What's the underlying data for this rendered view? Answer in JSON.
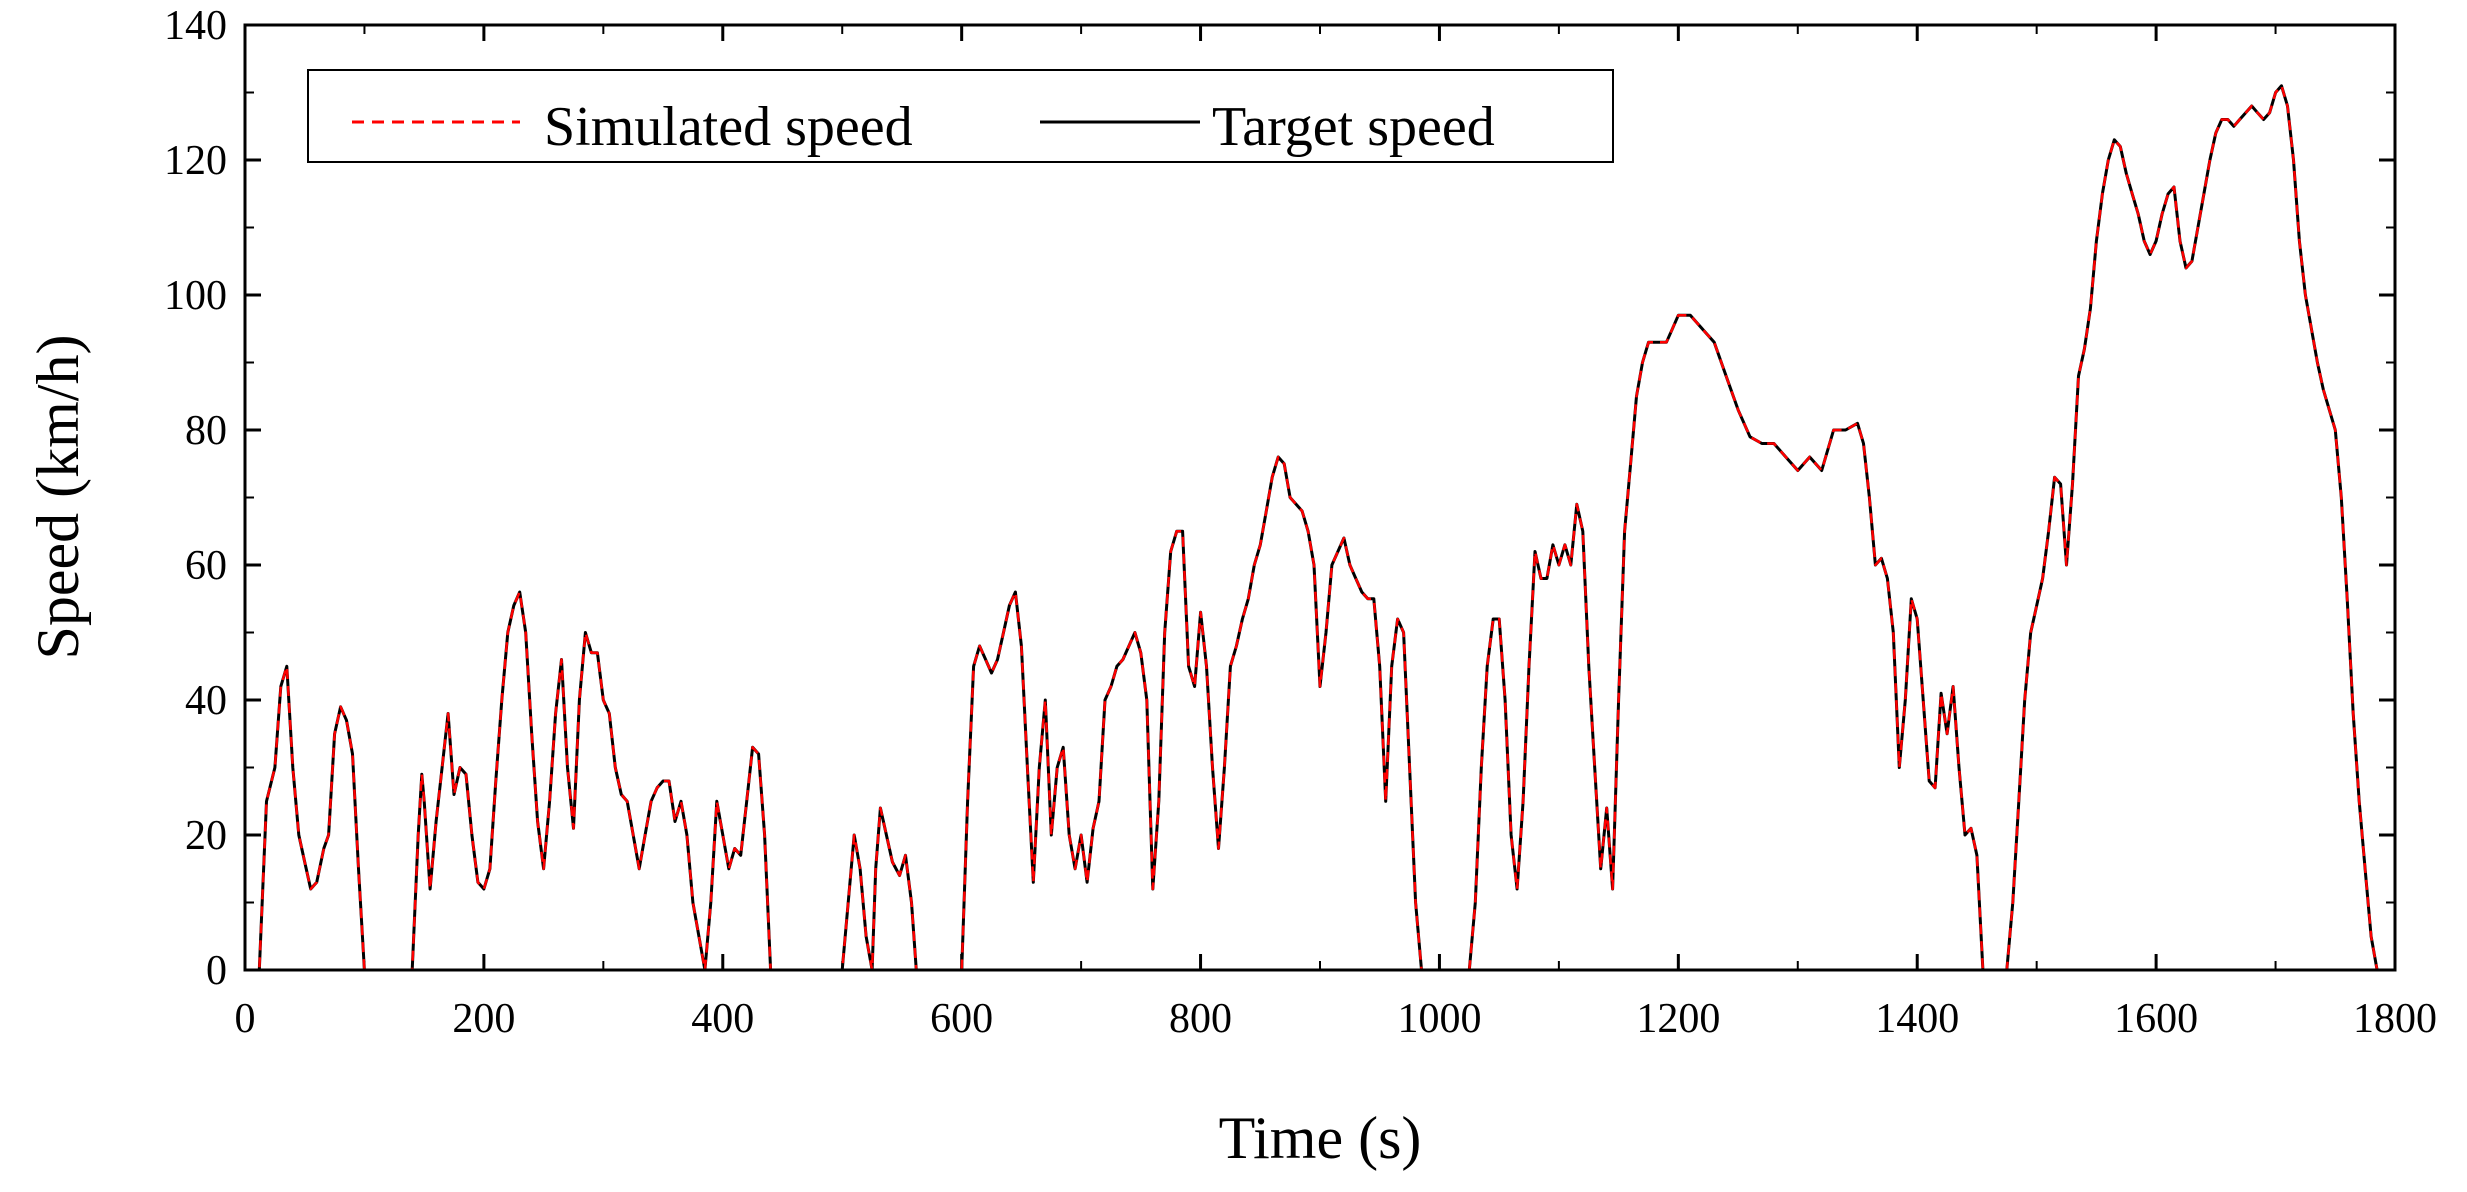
{
  "chart_data": {
    "type": "line",
    "title": "",
    "xlabel": "Time (s)",
    "ylabel": "Speed (km/h)",
    "xlim": [
      0,
      1800
    ],
    "ylim": [
      0,
      140
    ],
    "xticks": [
      0,
      200,
      400,
      600,
      800,
      1000,
      1200,
      1400,
      1600,
      1800
    ],
    "yticks": [
      0,
      20,
      40,
      60,
      80,
      100,
      120,
      140
    ],
    "legend_position": "top-left",
    "series": [
      {
        "name": "Simulated speed",
        "color": "#ff0000",
        "style": "dashed",
        "points": [
          [
            0,
            0
          ],
          [
            12,
            0
          ],
          [
            18,
            25
          ],
          [
            25,
            30
          ],
          [
            30,
            42
          ],
          [
            35,
            45
          ],
          [
            40,
            30
          ],
          [
            45,
            20
          ],
          [
            50,
            16
          ],
          [
            55,
            12
          ],
          [
            60,
            13
          ],
          [
            66,
            18
          ],
          [
            70,
            20
          ],
          [
            75,
            35
          ],
          [
            80,
            39
          ],
          [
            85,
            37
          ],
          [
            90,
            32
          ],
          [
            95,
            15
          ],
          [
            100,
            0
          ],
          [
            140,
            0
          ],
          [
            145,
            20
          ],
          [
            148,
            29
          ],
          [
            150,
            25
          ],
          [
            155,
            12
          ],
          [
            160,
            22
          ],
          [
            165,
            30
          ],
          [
            170,
            38
          ],
          [
            175,
            26
          ],
          [
            180,
            30
          ],
          [
            185,
            29
          ],
          [
            190,
            20
          ],
          [
            195,
            13
          ],
          [
            200,
            12
          ],
          [
            205,
            15
          ],
          [
            210,
            28
          ],
          [
            215,
            40
          ],
          [
            220,
            50
          ],
          [
            225,
            54
          ],
          [
            230,
            56
          ],
          [
            235,
            50
          ],
          [
            240,
            35
          ],
          [
            245,
            22
          ],
          [
            250,
            15
          ],
          [
            255,
            25
          ],
          [
            260,
            38
          ],
          [
            265,
            46
          ],
          [
            270,
            30
          ],
          [
            275,
            21
          ],
          [
            280,
            40
          ],
          [
            285,
            50
          ],
          [
            290,
            47
          ],
          [
            295,
            47
          ],
          [
            300,
            40
          ],
          [
            305,
            38
          ],
          [
            310,
            30
          ],
          [
            315,
            26
          ],
          [
            320,
            25
          ],
          [
            325,
            20
          ],
          [
            330,
            15
          ],
          [
            335,
            20
          ],
          [
            340,
            25
          ],
          [
            345,
            27
          ],
          [
            350,
            28
          ],
          [
            355,
            28
          ],
          [
            360,
            22
          ],
          [
            365,
            25
          ],
          [
            370,
            20
          ],
          [
            375,
            10
          ],
          [
            380,
            5
          ],
          [
            385,
            0
          ],
          [
            390,
            10
          ],
          [
            395,
            25
          ],
          [
            400,
            20
          ],
          [
            405,
            15
          ],
          [
            410,
            18
          ],
          [
            415,
            17
          ],
          [
            420,
            25
          ],
          [
            425,
            33
          ],
          [
            430,
            32
          ],
          [
            435,
            20
          ],
          [
            440,
            0
          ],
          [
            500,
            0
          ],
          [
            505,
            10
          ],
          [
            510,
            20
          ],
          [
            515,
            15
          ],
          [
            520,
            5
          ],
          [
            525,
            0
          ],
          [
            528,
            15
          ],
          [
            532,
            24
          ],
          [
            537,
            20
          ],
          [
            542,
            16
          ],
          [
            548,
            14
          ],
          [
            553,
            17
          ],
          [
            558,
            10
          ],
          [
            562,
            0
          ],
          [
            600,
            0
          ],
          [
            605,
            25
          ],
          [
            610,
            45
          ],
          [
            615,
            48
          ],
          [
            620,
            46
          ],
          [
            625,
            44
          ],
          [
            630,
            46
          ],
          [
            635,
            50
          ],
          [
            640,
            54
          ],
          [
            645,
            56
          ],
          [
            650,
            48
          ],
          [
            655,
            30
          ],
          [
            660,
            13
          ],
          [
            665,
            30
          ],
          [
            670,
            40
          ],
          [
            675,
            20
          ],
          [
            680,
            30
          ],
          [
            685,
            33
          ],
          [
            690,
            20
          ],
          [
            695,
            15
          ],
          [
            700,
            20
          ],
          [
            705,
            13
          ],
          [
            710,
            21
          ],
          [
            715,
            25
          ],
          [
            720,
            40
          ],
          [
            725,
            42
          ],
          [
            730,
            45
          ],
          [
            735,
            46
          ],
          [
            740,
            48
          ],
          [
            745,
            50
          ],
          [
            750,
            47
          ],
          [
            755,
            40
          ],
          [
            760,
            12
          ],
          [
            765,
            25
          ],
          [
            770,
            50
          ],
          [
            775,
            62
          ],
          [
            780,
            65
          ],
          [
            785,
            65
          ],
          [
            790,
            45
          ],
          [
            795,
            42
          ],
          [
            800,
            53
          ],
          [
            805,
            45
          ],
          [
            810,
            30
          ],
          [
            815,
            18
          ],
          [
            820,
            30
          ],
          [
            825,
            45
          ],
          [
            830,
            48
          ],
          [
            835,
            52
          ],
          [
            840,
            55
          ],
          [
            845,
            60
          ],
          [
            850,
            63
          ],
          [
            855,
            68
          ],
          [
            860,
            73
          ],
          [
            865,
            76
          ],
          [
            870,
            75
          ],
          [
            875,
            70
          ],
          [
            880,
            69
          ],
          [
            885,
            68
          ],
          [
            890,
            65
          ],
          [
            895,
            60
          ],
          [
            900,
            42
          ],
          [
            905,
            50
          ],
          [
            910,
            60
          ],
          [
            915,
            62
          ],
          [
            920,
            64
          ],
          [
            925,
            60
          ],
          [
            930,
            58
          ],
          [
            935,
            56
          ],
          [
            940,
            55
          ],
          [
            945,
            55
          ],
          [
            950,
            45
          ],
          [
            955,
            25
          ],
          [
            960,
            45
          ],
          [
            965,
            52
          ],
          [
            970,
            50
          ],
          [
            975,
            30
          ],
          [
            980,
            10
          ],
          [
            985,
            0
          ],
          [
            1025,
            0
          ],
          [
            1030,
            10
          ],
          [
            1035,
            30
          ],
          [
            1040,
            45
          ],
          [
            1045,
            52
          ],
          [
            1050,
            52
          ],
          [
            1055,
            40
          ],
          [
            1060,
            20
          ],
          [
            1065,
            12
          ],
          [
            1070,
            25
          ],
          [
            1075,
            45
          ],
          [
            1080,
            62
          ],
          [
            1085,
            58
          ],
          [
            1090,
            58
          ],
          [
            1095,
            63
          ],
          [
            1100,
            60
          ],
          [
            1105,
            63
          ],
          [
            1110,
            60
          ],
          [
            1115,
            69
          ],
          [
            1120,
            65
          ],
          [
            1125,
            45
          ],
          [
            1130,
            30
          ],
          [
            1135,
            15
          ],
          [
            1140,
            24
          ],
          [
            1145,
            12
          ],
          [
            1150,
            40
          ],
          [
            1155,
            65
          ],
          [
            1160,
            75
          ],
          [
            1165,
            85
          ],
          [
            1170,
            90
          ],
          [
            1175,
            93
          ],
          [
            1180,
            93
          ],
          [
            1185,
            93
          ],
          [
            1190,
            93
          ],
          [
            1195,
            95
          ],
          [
            1200,
            97
          ],
          [
            1210,
            97
          ],
          [
            1220,
            95
          ],
          [
            1230,
            93
          ],
          [
            1240,
            88
          ],
          [
            1250,
            83
          ],
          [
            1260,
            79
          ],
          [
            1270,
            78
          ],
          [
            1280,
            78
          ],
          [
            1290,
            76
          ],
          [
            1300,
            74
          ],
          [
            1310,
            76
          ],
          [
            1320,
            74
          ],
          [
            1330,
            80
          ],
          [
            1340,
            80
          ],
          [
            1350,
            81
          ],
          [
            1355,
            78
          ],
          [
            1360,
            70
          ],
          [
            1365,
            60
          ],
          [
            1370,
            61
          ],
          [
            1375,
            58
          ],
          [
            1380,
            50
          ],
          [
            1385,
            30
          ],
          [
            1390,
            40
          ],
          [
            1395,
            55
          ],
          [
            1400,
            52
          ],
          [
            1405,
            40
          ],
          [
            1410,
            28
          ],
          [
            1415,
            27
          ],
          [
            1420,
            41
          ],
          [
            1425,
            35
          ],
          [
            1430,
            42
          ],
          [
            1435,
            30
          ],
          [
            1440,
            20
          ],
          [
            1445,
            21
          ],
          [
            1450,
            17
          ],
          [
            1455,
            0
          ],
          [
            1475,
            0
          ],
          [
            1480,
            10
          ],
          [
            1485,
            25
          ],
          [
            1490,
            40
          ],
          [
            1495,
            50
          ],
          [
            1500,
            54
          ],
          [
            1505,
            58
          ],
          [
            1510,
            65
          ],
          [
            1515,
            73
          ],
          [
            1520,
            72
          ],
          [
            1525,
            60
          ],
          [
            1530,
            72
          ],
          [
            1535,
            88
          ],
          [
            1540,
            92
          ],
          [
            1545,
            98
          ],
          [
            1550,
            108
          ],
          [
            1555,
            115
          ],
          [
            1560,
            120
          ],
          [
            1565,
            123
          ],
          [
            1570,
            122
          ],
          [
            1575,
            118
          ],
          [
            1580,
            115
          ],
          [
            1585,
            112
          ],
          [
            1590,
            108
          ],
          [
            1595,
            106
          ],
          [
            1600,
            108
          ],
          [
            1605,
            112
          ],
          [
            1610,
            115
          ],
          [
            1615,
            116
          ],
          [
            1620,
            108
          ],
          [
            1625,
            104
          ],
          [
            1630,
            105
          ],
          [
            1635,
            110
          ],
          [
            1640,
            115
          ],
          [
            1645,
            120
          ],
          [
            1650,
            124
          ],
          [
            1655,
            126
          ],
          [
            1660,
            126
          ],
          [
            1665,
            125
          ],
          [
            1670,
            126
          ],
          [
            1675,
            127
          ],
          [
            1680,
            128
          ],
          [
            1685,
            127
          ],
          [
            1690,
            126
          ],
          [
            1695,
            127
          ],
          [
            1700,
            130
          ],
          [
            1705,
            131
          ],
          [
            1710,
            128
          ],
          [
            1715,
            120
          ],
          [
            1720,
            108
          ],
          [
            1725,
            100
          ],
          [
            1730,
            95
          ],
          [
            1735,
            90
          ],
          [
            1740,
            86
          ],
          [
            1745,
            83
          ],
          [
            1750,
            80
          ],
          [
            1755,
            70
          ],
          [
            1760,
            55
          ],
          [
            1765,
            38
          ],
          [
            1770,
            25
          ],
          [
            1775,
            15
          ],
          [
            1780,
            5
          ],
          [
            1785,
            0
          ]
        ]
      },
      {
        "name": "Target speed",
        "color": "#000000",
        "style": "solid",
        "points_ref": "Simulated speed"
      }
    ]
  }
}
